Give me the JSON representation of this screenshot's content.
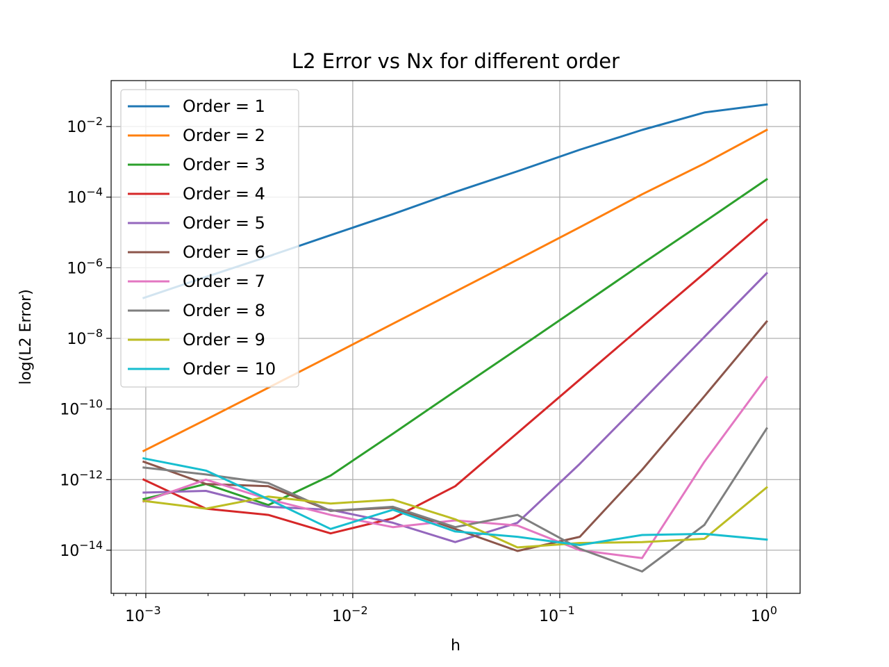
{
  "chart_data": {
    "type": "line",
    "title": "L2 Error vs Nx for different order",
    "xlabel": "h",
    "ylabel": "log(L2 Error)",
    "xscale": "log",
    "yscale": "log",
    "xlim": [
      0.00068,
      1.45
    ],
    "ylim": [
      6e-16,
      0.2
    ],
    "grid": true,
    "legend_position": "upper-left",
    "x_ticks": [
      {
        "value": 0.001,
        "base": "10",
        "exp": "−3"
      },
      {
        "value": 0.01,
        "base": "10",
        "exp": "−2"
      },
      {
        "value": 0.1,
        "base": "10",
        "exp": "−1"
      },
      {
        "value": 1,
        "base": "10",
        "exp": "0"
      }
    ],
    "y_ticks": [
      {
        "value": 0.01,
        "base": "10",
        "exp": "−2"
      },
      {
        "value": 0.0001,
        "base": "10",
        "exp": "−4"
      },
      {
        "value": 1e-06,
        "base": "10",
        "exp": "−6"
      },
      {
        "value": 1e-08,
        "base": "10",
        "exp": "−8"
      },
      {
        "value": 1e-10,
        "base": "10",
        "exp": "−10"
      },
      {
        "value": 1e-12,
        "base": "10",
        "exp": "−12"
      },
      {
        "value": 1e-14,
        "base": "10",
        "exp": "−14"
      }
    ],
    "x": [
      1,
      0.5,
      0.25,
      0.125,
      0.0625,
      0.03125,
      0.015625,
      0.0078125,
      0.00390625,
      0.001953125,
      0.0009765625
    ],
    "series": [
      {
        "name": "Order = 1",
        "color": "#1f77b4",
        "values": [
          0.042,
          0.025,
          0.008,
          0.0022,
          0.00054,
          0.00014,
          3.3e-05,
          8.4e-06,
          2.1e-06,
          5.5e-07,
          1.4e-07
        ]
      },
      {
        "name": "Order = 2",
        "color": "#ff7f0e",
        "values": [
          0.008,
          0.0009,
          0.00012,
          1.4e-05,
          1.7e-06,
          2.1e-07,
          2.6e-08,
          3.2e-09,
          4e-10,
          5e-11,
          6.5e-12
        ]
      },
      {
        "name": "Order = 3",
        "color": "#2ca02c",
        "values": [
          0.00032,
          2e-05,
          1.3e-06,
          8e-08,
          5e-09,
          3.2e-10,
          2e-11,
          1.3e-12,
          1.9e-13,
          7.5e-13,
          2.8e-13
        ]
      },
      {
        "name": "Order = 4",
        "color": "#d62728",
        "values": [
          2.3e-05,
          7e-07,
          2.2e-08,
          6.8e-10,
          2.1e-11,
          6.5e-13,
          8e-14,
          3e-14,
          1e-13,
          1.5e-13,
          1e-12
        ]
      },
      {
        "name": "Order = 5",
        "color": "#9467bd",
        "values": [
          7e-07,
          1.1e-08,
          1.7e-10,
          2.8e-12,
          6e-14,
          1.7e-14,
          6e-14,
          1.4e-13,
          1.7e-13,
          4.8e-13,
          4.3e-13
        ]
      },
      {
        "name": "Order = 6",
        "color": "#8c564b",
        "values": [
          3e-08,
          2.3e-10,
          1.9e-12,
          2.4e-14,
          9.5e-15,
          4e-14,
          1.6e-13,
          1.3e-13,
          6.5e-13,
          7.5e-13,
          3.2e-12
        ]
      },
      {
        "name": "Order = 7",
        "color": "#e377c2",
        "values": [
          8e-10,
          3.2e-12,
          6e-15,
          1e-14,
          5e-14,
          7e-14,
          4.5e-14,
          1e-13,
          2.8e-13,
          1e-12,
          2.4e-13
        ]
      },
      {
        "name": "Order = 8",
        "color": "#7f7f7f",
        "values": [
          2.8e-11,
          5.2e-14,
          2.5e-15,
          1.1e-14,
          1e-13,
          4.5e-14,
          1.7e-13,
          1.3e-13,
          8e-13,
          1.4e-12,
          2.2e-12
        ]
      },
      {
        "name": "Order = 9",
        "color": "#bcbd22",
        "values": [
          6e-13,
          2.1e-14,
          1.7e-14,
          1.6e-14,
          1.2e-14,
          7.5e-14,
          2.7e-13,
          2.1e-13,
          3.3e-13,
          1.5e-13,
          2.5e-13
        ]
      },
      {
        "name": "Order = 10",
        "color": "#17becf",
        "values": [
          2e-14,
          2.9e-14,
          2.7e-14,
          1.4e-14,
          2.4e-14,
          3.4e-14,
          1.4e-13,
          4e-14,
          2.8e-13,
          1.8e-12,
          4e-12
        ]
      }
    ]
  }
}
